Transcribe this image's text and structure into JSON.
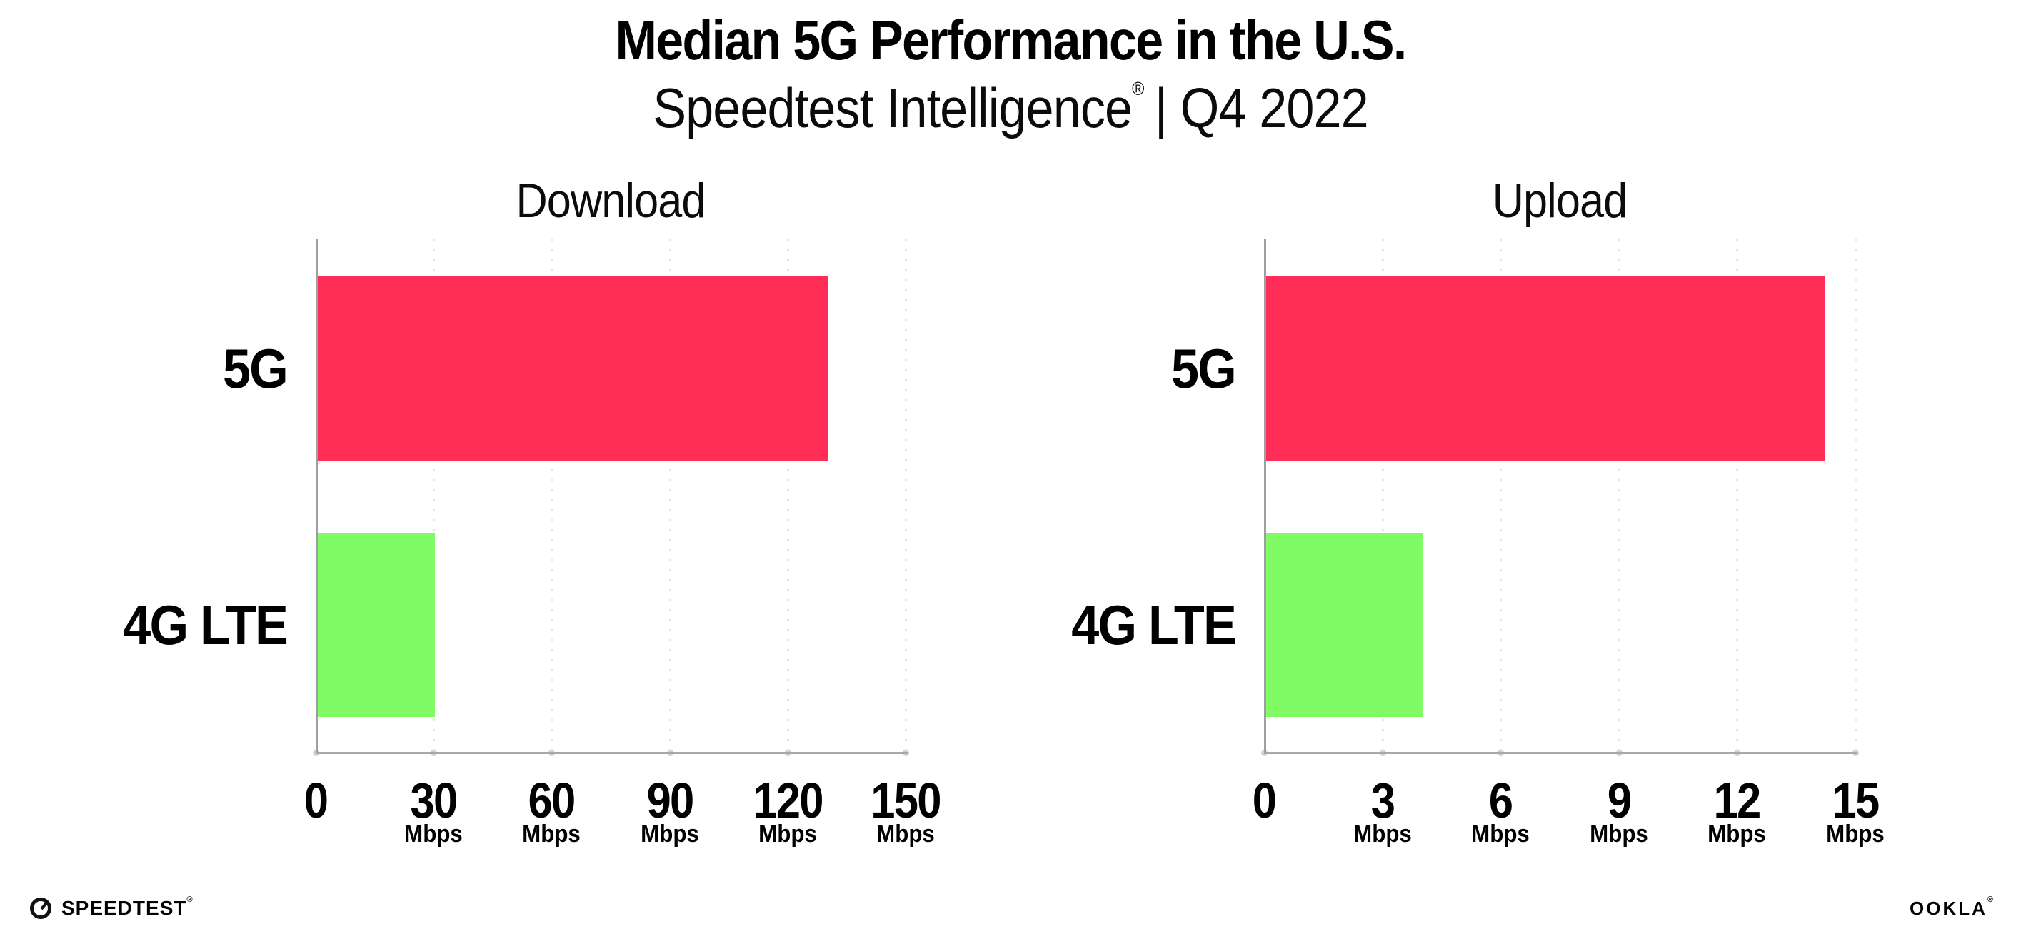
{
  "title": "Median 5G Performance in the U.S.",
  "subtitle": {
    "brand": "Speedtest Intelligence",
    "reg": "®",
    "tail": "| Q4 2022"
  },
  "footer": {
    "speedtest_label": "SPEEDTEST",
    "speedtest_reg": "®",
    "ookla_label": "OOKLA",
    "ookla_reg": "®"
  },
  "colors": {
    "bar_5g": "#ff2e56",
    "bar_4g_lte": "#80fb66",
    "axis_line": "#a8a8ac",
    "grid_dot": "#e3e3eb",
    "tick_dot": "#ccd1de",
    "text": "#000000",
    "background": "#ffffff"
  },
  "chart_data": [
    {
      "type": "bar",
      "orientation": "horizontal",
      "title": "Download",
      "unit": "Mbps",
      "categories": [
        "5G",
        "4G LTE"
      ],
      "values": [
        130,
        30
      ],
      "xlim": [
        0,
        150
      ],
      "xticks": [
        0,
        30,
        60,
        90,
        120,
        150
      ],
      "xtick_unit_suffix": "Mbps",
      "unit_on_zero_tick": false,
      "grid": "vertical-dotted",
      "legend": "none",
      "bar_colors": [
        "#ff2e56",
        "#80fb66"
      ]
    },
    {
      "type": "bar",
      "orientation": "horizontal",
      "title": "Upload",
      "unit": "Mbps",
      "categories": [
        "5G",
        "4G LTE"
      ],
      "values": [
        14.2,
        4
      ],
      "xlim": [
        0,
        15
      ],
      "xticks": [
        0,
        3,
        6,
        9,
        12,
        15
      ],
      "xtick_unit_suffix": "Mbps",
      "unit_on_zero_tick": false,
      "grid": "vertical-dotted",
      "legend": "none",
      "bar_colors": [
        "#ff2e56",
        "#80fb66"
      ]
    }
  ]
}
